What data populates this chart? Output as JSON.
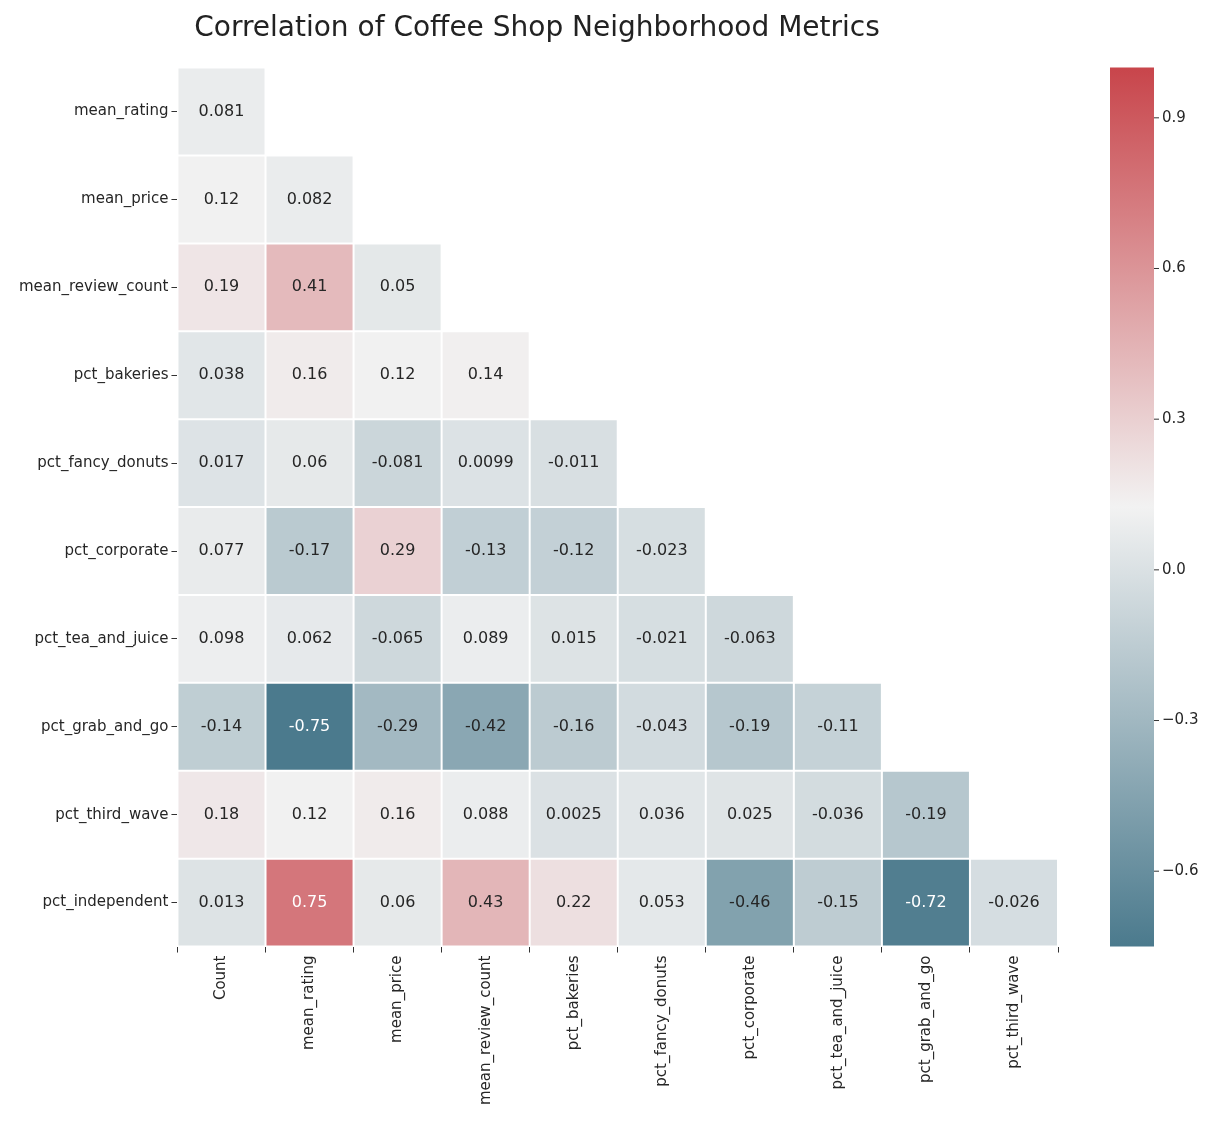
{
  "chart_data": {
    "type": "heatmap",
    "title": "Correlation of Coffee Shop Neighborhood Metrics",
    "categories": [
      "Count",
      "mean_rating",
      "mean_price",
      "mean_review_count",
      "pct_bakeries",
      "pct_fancy_donuts",
      "pct_corporate",
      "pct_tea_and_juice",
      "pct_grab_and_go",
      "pct_third_wave"
    ],
    "y_categories": [
      "mean_rating",
      "mean_price",
      "mean_review_count",
      "pct_bakeries",
      "pct_fancy_donuts",
      "pct_corporate",
      "pct_tea_and_juice",
      "pct_grab_and_go",
      "pct_third_wave",
      "pct_independent"
    ],
    "cells": [
      [
        0.081,
        null,
        null,
        null,
        null,
        null,
        null,
        null,
        null,
        null
      ],
      [
        0.12,
        0.082,
        null,
        null,
        null,
        null,
        null,
        null,
        null,
        null
      ],
      [
        0.19,
        0.41,
        0.05,
        null,
        null,
        null,
        null,
        null,
        null,
        null
      ],
      [
        0.038,
        0.16,
        0.12,
        0.14,
        null,
        null,
        null,
        null,
        null,
        null
      ],
      [
        0.017,
        0.06,
        -0.081,
        0.0099,
        -0.011,
        null,
        null,
        null,
        null,
        null
      ],
      [
        0.077,
        -0.17,
        0.29,
        -0.13,
        -0.12,
        -0.023,
        null,
        null,
        null,
        null
      ],
      [
        0.098,
        0.062,
        -0.065,
        0.089,
        0.015,
        -0.021,
        -0.063,
        null,
        null,
        null
      ],
      [
        -0.14,
        -0.75,
        -0.29,
        -0.42,
        -0.16,
        -0.043,
        -0.19,
        -0.11,
        null,
        null
      ],
      [
        0.18,
        0.12,
        0.16,
        0.088,
        0.0025,
        0.036,
        0.025,
        -0.036,
        -0.19,
        null
      ],
      [
        0.013,
        0.75,
        0.06,
        0.43,
        0.22,
        0.053,
        -0.46,
        -0.15,
        -0.72,
        -0.026
      ]
    ],
    "data_labels": true,
    "clim": [
      -0.75,
      1.0
    ],
    "cticks": [
      0.9,
      0.6,
      0.3,
      {
        "value": 0,
        "label": "0.0"
      },
      {
        "value": -0.3,
        "label": "−0.3"
      },
      {
        "value": -0.6,
        "label": "−0.6"
      }
    ]
  }
}
